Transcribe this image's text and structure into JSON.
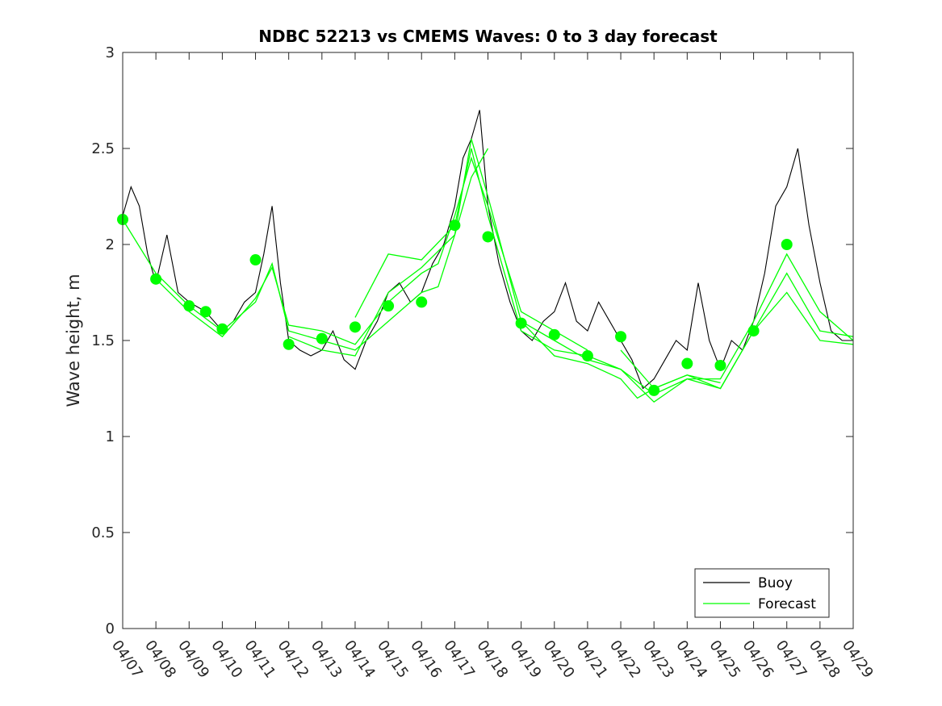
{
  "chart_data": {
    "type": "line",
    "title": "NDBC 52213 vs CMEMS Waves: 0 to 3 day forecast",
    "xlabel": "",
    "ylabel": "Wave height, m",
    "x_unit": "date",
    "xlim": [
      "04/07",
      "04/29"
    ],
    "ylim": [
      0,
      3
    ],
    "x_tick_labels": [
      "04/07",
      "04/08",
      "04/09",
      "04/10",
      "04/11",
      "04/12",
      "04/13",
      "04/14",
      "04/15",
      "04/16",
      "04/17",
      "04/18",
      "04/19",
      "04/20",
      "04/21",
      "04/22",
      "04/23",
      "04/24",
      "04/25",
      "04/26",
      "04/27",
      "04/28",
      "04/29"
    ],
    "y_ticks": [
      0,
      0.5,
      1,
      1.5,
      2,
      2.5,
      3
    ],
    "y_tick_labels": [
      "0",
      "0.5",
      "1",
      "1.5",
      "2",
      "2.5",
      "3"
    ],
    "grid": false,
    "legend": {
      "position": "bottom-right",
      "entries": [
        "Buoy",
        "Forecast"
      ]
    },
    "colors": {
      "buoy": "#000000",
      "forecast": "#00ff00",
      "axis": "#262626"
    },
    "series": [
      {
        "name": "Buoy",
        "style": "line",
        "x": [
          "04/07",
          "04/07",
          "04/07",
          "04/07",
          "04/08",
          "04/08",
          "04/08",
          "04/09",
          "04/09",
          "04/10",
          "04/10",
          "04/10",
          "04/11",
          "04/11",
          "04/11",
          "04/11",
          "04/12",
          "04/12",
          "04/12",
          "04/13",
          "04/13",
          "04/13",
          "04/14",
          "04/14",
          "04/14",
          "04/15",
          "04/15",
          "04/15",
          "04/16",
          "04/16",
          "04/16",
          "04/17",
          "04/17",
          "04/17",
          "04/17",
          "04/18",
          "04/18",
          "04/18",
          "04/19",
          "04/19",
          "04/19",
          "04/20",
          "04/20",
          "04/20",
          "04/21",
          "04/21",
          "04/21",
          "04/22",
          "04/22",
          "04/22",
          "04/23",
          "04/23",
          "04/23",
          "04/24",
          "04/24",
          "04/24",
          "04/25",
          "04/25",
          "04/25",
          "04/26",
          "04/26",
          "04/26",
          "04/27",
          "04/27",
          "04/27",
          "04/28",
          "04/28",
          "04/28",
          "04/29"
        ],
        "values": [
          2.15,
          2.3,
          2.2,
          1.95,
          1.8,
          2.05,
          1.75,
          1.7,
          1.65,
          1.55,
          1.6,
          1.7,
          1.75,
          1.95,
          2.2,
          1.8,
          1.5,
          1.45,
          1.42,
          1.45,
          1.55,
          1.4,
          1.35,
          1.5,
          1.6,
          1.75,
          1.8,
          1.7,
          1.75,
          1.9,
          2.0,
          2.2,
          2.45,
          2.55,
          2.7,
          2.2,
          1.9,
          1.7,
          1.55,
          1.5,
          1.6,
          1.65,
          1.8,
          1.6,
          1.55,
          1.7,
          1.6,
          1.5,
          1.4,
          1.25,
          1.3,
          1.4,
          1.5,
          1.45,
          1.8,
          1.5,
          1.35,
          1.5,
          1.45,
          1.6,
          1.85,
          2.2,
          2.3,
          2.5,
          2.1,
          1.8,
          1.55,
          1.5,
          1.5
        ]
      },
      {
        "name": "Forecast",
        "style": "line",
        "x": [
          "04/07",
          "04/08",
          "04/09",
          "04/10",
          "04/11",
          "04/11",
          "04/12",
          "04/13",
          "04/14",
          "04/15",
          "04/16",
          "04/16",
          "04/17",
          "04/17",
          "04/18"
        ],
        "values": [
          2.13,
          1.85,
          1.68,
          1.55,
          1.7,
          1.9,
          1.55,
          1.5,
          1.45,
          1.6,
          1.75,
          1.78,
          2.05,
          2.35,
          2.5
        ]
      },
      {
        "name": "Forecast",
        "style": "line",
        "x": [
          "04/08",
          "04/09",
          "04/10",
          "04/11",
          "04/11",
          "04/12",
          "04/13",
          "04/14",
          "04/15",
          "04/16",
          "04/16",
          "04/17",
          "04/17",
          "04/18",
          "04/19",
          "04/20",
          "04/21"
        ],
        "values": [
          1.82,
          1.65,
          1.52,
          1.72,
          1.88,
          1.58,
          1.55,
          1.48,
          1.7,
          1.85,
          1.9,
          2.15,
          2.45,
          2.2,
          1.65,
          1.55,
          1.45
        ]
      },
      {
        "name": "Forecast",
        "style": "line",
        "x": [
          "04/12",
          "04/13",
          "04/14",
          "04/15",
          "04/16",
          "04/17",
          "04/17",
          "04/18",
          "04/19",
          "04/20",
          "04/21",
          "04/22",
          "04/22",
          "04/23",
          "04/24",
          "04/25"
        ],
        "values": [
          1.52,
          1.45,
          1.42,
          1.75,
          1.88,
          2.05,
          2.55,
          2.25,
          1.6,
          1.42,
          1.38,
          1.3,
          1.2,
          1.25,
          1.32,
          1.28
        ]
      },
      {
        "name": "Forecast",
        "style": "line",
        "x": [
          "04/14",
          "04/15",
          "04/16",
          "04/17",
          "04/17",
          "04/18",
          "04/19",
          "04/20",
          "04/21",
          "04/22",
          "04/23",
          "04/24",
          "04/25",
          "04/26",
          "04/27",
          "04/28",
          "04/29"
        ],
        "values": [
          1.62,
          1.95,
          1.92,
          2.1,
          2.5,
          2.15,
          1.55,
          1.45,
          1.42,
          1.35,
          1.22,
          1.3,
          1.25,
          1.55,
          1.85,
          1.55,
          1.52
        ]
      },
      {
        "name": "Forecast",
        "style": "line",
        "x": [
          "04/19",
          "04/20",
          "04/21",
          "04/22",
          "04/23",
          "04/24",
          "04/25",
          "04/26",
          "04/27",
          "04/28",
          "04/29"
        ],
        "values": [
          1.6,
          1.5,
          1.4,
          1.35,
          1.18,
          1.3,
          1.3,
          1.6,
          1.95,
          1.65,
          1.5
        ]
      },
      {
        "name": "Forecast",
        "style": "line",
        "x": [
          "04/22",
          "04/23",
          "04/24",
          "04/25",
          "04/26",
          "04/27",
          "04/28",
          "04/29"
        ],
        "values": [
          1.45,
          1.25,
          1.32,
          1.25,
          1.55,
          1.75,
          1.5,
          1.48
        ]
      },
      {
        "name": "Forecast",
        "style": "markers",
        "x": [
          "04/07",
          "04/08",
          "04/09",
          "04/09",
          "04/10",
          "04/11",
          "04/12",
          "04/13",
          "04/14",
          "04/15",
          "04/16",
          "04/17",
          "04/18",
          "04/19",
          "04/20",
          "04/21",
          "04/22",
          "04/23",
          "04/24",
          "04/25",
          "04/26",
          "04/27"
        ],
        "values": [
          2.13,
          1.82,
          1.68,
          1.65,
          1.56,
          1.92,
          1.48,
          1.51,
          1.57,
          1.68,
          1.7,
          2.1,
          2.04,
          1.59,
          1.53,
          1.42,
          1.52,
          1.24,
          1.38,
          1.37,
          1.55,
          2.0
        ]
      }
    ]
  }
}
